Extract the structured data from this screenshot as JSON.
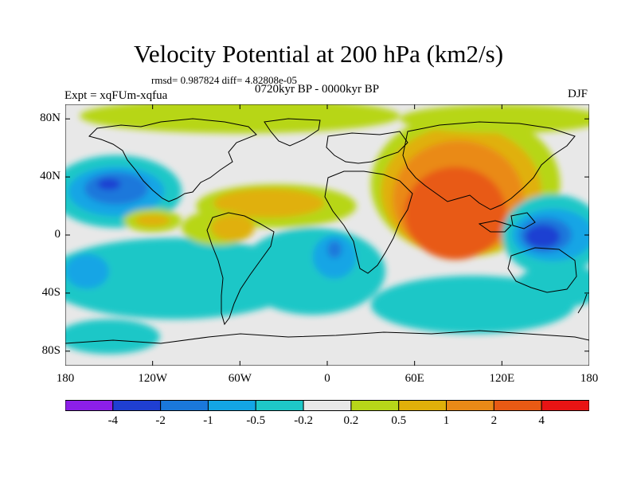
{
  "title": "Velocity Potential at 200 hPa (km2/s)",
  "stats_line": "rmsd= 0.987824 diff= 4.82808e-05",
  "period_line": "0720kyr BP - 0000kyr BP",
  "experiment_label": "Expt = xqFUm-xqfua",
  "season_label": "DJF",
  "map": {
    "projection": "cylindrical-equidistant",
    "lon_range": [
      -180,
      180
    ],
    "lat_range": [
      -90,
      90
    ],
    "y_ticks": [
      {
        "label": "80N",
        "lat": 80
      },
      {
        "label": "40N",
        "lat": 40
      },
      {
        "label": "0",
        "lat": 0
      },
      {
        "label": "40S",
        "lat": -40
      },
      {
        "label": "80S",
        "lat": -80
      }
    ],
    "x_ticks": [
      {
        "label": "180",
        "lon": -180
      },
      {
        "label": "120W",
        "lon": -120
      },
      {
        "label": "60W",
        "lon": -60
      },
      {
        "label": "0",
        "lon": 0
      },
      {
        "label": "60E",
        "lon": 60
      },
      {
        "label": "120E",
        "lon": 120
      },
      {
        "label": "180",
        "lon": 180
      }
    ],
    "background_class_color": "#e8e8e8",
    "field_blobs": [
      {
        "name": "arctic-positive",
        "lon": -60,
        "lat": 82,
        "rx": 110,
        "ry": 12,
        "color": "#b7d619"
      },
      {
        "name": "pacific-minus",
        "lon": -145,
        "lat": 30,
        "rx": 45,
        "ry": 25,
        "color": "#1ec7c7"
      },
      {
        "name": "pacific-minus-core",
        "lon": -145,
        "lat": 30,
        "rx": 33,
        "ry": 17,
        "color": "#13a5e5"
      },
      {
        "name": "pacific-minus-inner",
        "lon": -145,
        "lat": 32,
        "rx": 22,
        "ry": 11,
        "color": "#1a78db"
      },
      {
        "name": "pacific-minus-peak",
        "lon": -150,
        "lat": 35,
        "rx": 8,
        "ry": 4,
        "color": "#1f3fd2"
      },
      {
        "name": "south-pacific-minus",
        "lon": -105,
        "lat": -30,
        "rx": 90,
        "ry": 28,
        "color": "#1ec7c7"
      },
      {
        "name": "south-pacific-inner",
        "lon": -165,
        "lat": -25,
        "rx": 15,
        "ry": 12,
        "color": "#13a5e5"
      },
      {
        "name": "atlantic-positive",
        "lon": -35,
        "lat": 20,
        "rx": 55,
        "ry": 15,
        "color": "#b7d619"
      },
      {
        "name": "atlantic-positive-core",
        "lon": -40,
        "lat": 22,
        "rx": 38,
        "ry": 10,
        "color": "#e0b00a"
      },
      {
        "name": "amazon-positive",
        "lon": -75,
        "lat": 5,
        "rx": 25,
        "ry": 12,
        "color": "#b7d619"
      },
      {
        "name": "amazon-positive-core",
        "lon": -65,
        "lat": 5,
        "rx": 15,
        "ry": 9,
        "color": "#e0b00a"
      },
      {
        "name": "east-pacific-positive",
        "lon": -120,
        "lat": 10,
        "rx": 20,
        "ry": 8,
        "color": "#b7d619"
      },
      {
        "name": "east-pacific-core",
        "lon": -120,
        "lat": 10,
        "rx": 12,
        "ry": 4,
        "color": "#e0b00a"
      },
      {
        "name": "south-atlantic-minus",
        "lon": -10,
        "lat": -25,
        "rx": 50,
        "ry": 30,
        "color": "#1ec7c7"
      },
      {
        "name": "africa-minus",
        "lon": 5,
        "lat": -15,
        "rx": 15,
        "ry": 15,
        "color": "#13a5e5"
      },
      {
        "name": "africa-minus-core",
        "lon": 5,
        "lat": -10,
        "rx": 5,
        "ry": 6,
        "color": "#1a78db"
      },
      {
        "name": "asia-positive",
        "lon": 95,
        "lat": 35,
        "rx": 65,
        "ry": 50,
        "color": "#b7d619"
      },
      {
        "name": "asia-positive-2",
        "lon": 92,
        "lat": 30,
        "rx": 55,
        "ry": 45,
        "color": "#e0b00a"
      },
      {
        "name": "asia-positive-3",
        "lon": 90,
        "lat": 25,
        "rx": 45,
        "ry": 40,
        "color": "#ea8a17"
      },
      {
        "name": "asia-positive-4",
        "lon": 88,
        "lat": 15,
        "rx": 35,
        "ry": 32,
        "color": "#e85a14"
      },
      {
        "name": "maritime-minus",
        "lon": 155,
        "lat": 0,
        "rx": 35,
        "ry": 28,
        "color": "#1ec7c7"
      },
      {
        "name": "maritime-minus-2",
        "lon": 155,
        "lat": 0,
        "rx": 28,
        "ry": 18,
        "color": "#13a5e5"
      },
      {
        "name": "maritime-minus-3",
        "lon": 150,
        "lat": 0,
        "rx": 18,
        "ry": 12,
        "color": "#1a78db"
      },
      {
        "name": "maritime-minus-peak",
        "lon": 148,
        "lat": -1,
        "rx": 12,
        "ry": 8,
        "color": "#1f3fd2"
      },
      {
        "name": "southern-ocean-minus",
        "lon": 100,
        "lat": -48,
        "rx": 70,
        "ry": 20,
        "color": "#1ec7c7"
      },
      {
        "name": "south-indian-minus",
        "lon": 160,
        "lat": -35,
        "rx": 30,
        "ry": 15,
        "color": "#1ec7c7"
      },
      {
        "name": "antarctic-minus",
        "lon": -150,
        "lat": -70,
        "rx": 35,
        "ry": 12,
        "color": "#1ec7c7"
      },
      {
        "name": "arctic-positive-east",
        "lon": 120,
        "lat": 80,
        "rx": 70,
        "ry": 10,
        "color": "#b7d619"
      }
    ],
    "coastline_color": "#000000"
  },
  "colorbar": {
    "colors": [
      "#8c1fe8",
      "#1f3fd2",
      "#1a78db",
      "#13a5e5",
      "#1ec7c7",
      "#e8e8e8",
      "#b7d619",
      "#e0b00a",
      "#ea8a17",
      "#e85a14",
      "#e81414"
    ],
    "labels": [
      {
        "text": "-4",
        "boundary": 1
      },
      {
        "text": "-2",
        "boundary": 2
      },
      {
        "text": "-1",
        "boundary": 3
      },
      {
        "text": "-0.5",
        "boundary": 4
      },
      {
        "text": "-0.2",
        "boundary": 5
      },
      {
        "text": "0.2",
        "boundary": 6
      },
      {
        "text": "0.5",
        "boundary": 7
      },
      {
        "text": "1",
        "boundary": 8
      },
      {
        "text": "2",
        "boundary": 9
      },
      {
        "text": "4",
        "boundary": 10
      }
    ]
  }
}
